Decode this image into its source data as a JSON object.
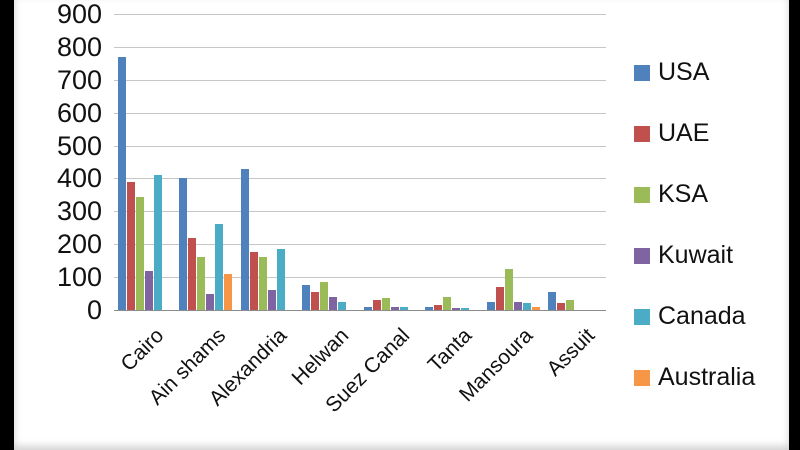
{
  "chart_data": {
    "type": "bar",
    "title": "",
    "xlabel": "",
    "ylabel": "",
    "ylim": [
      0,
      900
    ],
    "ytick_step": 100,
    "grid": true,
    "legend_position": "right",
    "categories": [
      "Cairo",
      "Ain shams",
      "Alexandria",
      "Helwan",
      "Suez Canal",
      "Tanta",
      "Mansoura",
      "Assuit"
    ],
    "series": [
      {
        "name": "USA",
        "color": "#4F81BD",
        "values": [
          770,
          400,
          430,
          75,
          10,
          10,
          25,
          55
        ]
      },
      {
        "name": "UAE",
        "color": "#C0504D",
        "values": [
          390,
          220,
          175,
          55,
          30,
          15,
          70,
          20
        ]
      },
      {
        "name": "KSA",
        "color": "#9BBB59",
        "values": [
          345,
          160,
          160,
          85,
          35,
          40,
          125,
          30
        ]
      },
      {
        "name": "Kuwait",
        "color": "#8064A2",
        "values": [
          120,
          50,
          60,
          40,
          10,
          5,
          25,
          0
        ]
      },
      {
        "name": "Canada",
        "color": "#4BACC6",
        "values": [
          410,
          260,
          185,
          25,
          10,
          5,
          20,
          0
        ]
      },
      {
        "name": "Australia",
        "color": "#F79646",
        "values": [
          0,
          110,
          0,
          0,
          0,
          0,
          10,
          0
        ]
      }
    ]
  }
}
